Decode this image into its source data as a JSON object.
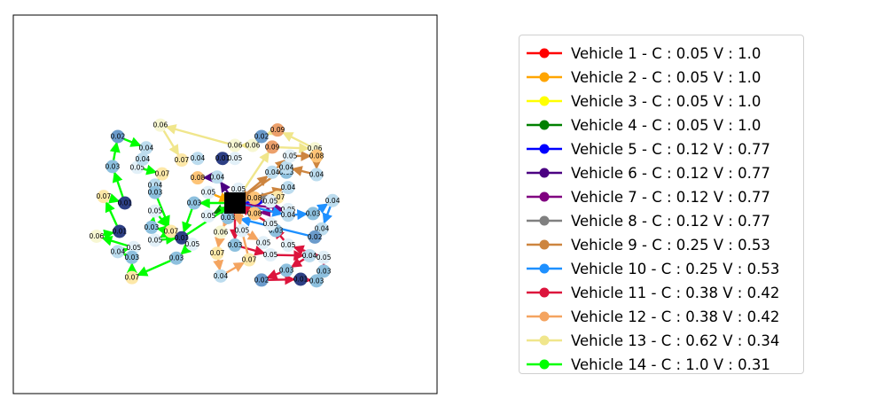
{
  "chart_data": {
    "type": "scatter",
    "title": "",
    "xlabel": "",
    "ylabel": "",
    "grid": false,
    "legend_placement": "right",
    "depot": {
      "x": 0.0,
      "y": 0.0,
      "marker": "square",
      "color": "#000000"
    },
    "nodes": [
      {
        "x": -12.86,
        "y": 13.43,
        "label": "0.06",
        "color": "#f7f7d2"
      },
      {
        "x": 0.0,
        "y": 9.93,
        "label": "0.06",
        "color": "#f7f7d2"
      },
      {
        "x": 3.06,
        "y": 9.93,
        "label": "0.06",
        "color": "#f7f7d2"
      },
      {
        "x": 4.59,
        "y": 11.47,
        "label": "0.02",
        "color": "#6b9bcb"
      },
      {
        "x": 7.35,
        "y": 12.59,
        "label": "0.09",
        "color": "#eca06b"
      },
      {
        "x": 6.43,
        "y": 9.65,
        "label": "0.09",
        "color": "#eca06b"
      },
      {
        "x": 13.78,
        "y": 9.37,
        "label": "0.06",
        "color": "#f7f7d2"
      },
      {
        "x": -6.43,
        "y": 7.69,
        "label": "0.04",
        "color": "#bcdcee"
      },
      {
        "x": -2.14,
        "y": 7.69,
        "label": "0.01",
        "color": "#2d3f84"
      },
      {
        "x": 0.0,
        "y": 7.69,
        "label": "0.05",
        "color": "#e2f0f8"
      },
      {
        "x": -9.18,
        "y": 7.41,
        "label": "0.07",
        "color": "#fde8a8"
      },
      {
        "x": -20.2,
        "y": 11.47,
        "label": "0.02",
        "color": "#6b9bcb"
      },
      {
        "x": -15.31,
        "y": 9.51,
        "label": "0.04",
        "color": "#bcdcee"
      },
      {
        "x": -21.12,
        "y": 6.29,
        "label": "0.03",
        "color": "#8dc0de"
      },
      {
        "x": -16.84,
        "y": 6.15,
        "label": "0.05",
        "color": "#e2f0f8"
      },
      {
        "x": -15.92,
        "y": 7.55,
        "label": "0.04",
        "color": "#bcdcee"
      },
      {
        "x": -12.55,
        "y": 5.03,
        "label": "0.07",
        "color": "#fde8a8"
      },
      {
        "x": -13.78,
        "y": 3.08,
        "label": "0.04",
        "color": "#bcdcee"
      },
      {
        "x": -13.78,
        "y": 1.82,
        "label": "0.03",
        "color": "#8dc0de"
      },
      {
        "x": -22.65,
        "y": 1.12,
        "label": "0.07",
        "color": "#fde8a8"
      },
      {
        "x": -18.98,
        "y": 0.0,
        "label": "0.01",
        "color": "#2d3f84"
      },
      {
        "x": -13.78,
        "y": -1.4,
        "label": "0.05",
        "color": "#e2f0f8"
      },
      {
        "x": -7.04,
        "y": 0.0,
        "label": "0.03",
        "color": "#8dc0de"
      },
      {
        "x": -4.59,
        "y": 1.82,
        "label": "0.05",
        "color": "#e2f0f8"
      },
      {
        "x": -6.43,
        "y": 4.33,
        "label": "0.08",
        "color": "#fdc477"
      },
      {
        "x": -3.06,
        "y": 4.47,
        "label": "0.04",
        "color": "#bcdcee"
      },
      {
        "x": 0.61,
        "y": 2.38,
        "label": "0.05",
        "color": "#e2f0f8"
      },
      {
        "x": -4.59,
        "y": -2.24,
        "label": "0.05",
        "color": "#e2f0f8"
      },
      {
        "x": -14.39,
        "y": -4.19,
        "label": "0.03",
        "color": "#8dc0de"
      },
      {
        "x": -11.02,
        "y": -4.89,
        "label": "0.07",
        "color": "#fde8a8"
      },
      {
        "x": -19.9,
        "y": -4.89,
        "label": "0.01",
        "color": "#2d3f84"
      },
      {
        "x": -13.78,
        "y": -6.43,
        "label": "0.05",
        "color": "#e2f0f8"
      },
      {
        "x": -9.18,
        "y": -6.01,
        "label": "0.01",
        "color": "#2d3f84"
      },
      {
        "x": -7.35,
        "y": -7.13,
        "label": "0.05",
        "color": "#e2f0f8"
      },
      {
        "x": -23.88,
        "y": -5.73,
        "label": "0.06",
        "color": "#f7f7d2"
      },
      {
        "x": -17.45,
        "y": -7.69,
        "label": "0.05",
        "color": "#e2f0f8"
      },
      {
        "x": -20.2,
        "y": -8.39,
        "label": "0.04",
        "color": "#bcdcee"
      },
      {
        "x": -17.76,
        "y": -9.37,
        "label": "0.03",
        "color": "#8dc0de"
      },
      {
        "x": -10.1,
        "y": -9.51,
        "label": "0.03",
        "color": "#8dc0de"
      },
      {
        "x": -17.76,
        "y": -12.87,
        "label": "0.07",
        "color": "#fde8a8"
      },
      {
        "x": -1.22,
        "y": -2.52,
        "label": "0.03",
        "color": "#8dc0de"
      },
      {
        "x": -2.45,
        "y": -5.03,
        "label": "0.06",
        "color": "#f7f7d2"
      },
      {
        "x": 1.22,
        "y": -4.75,
        "label": "0.05",
        "color": "#e2f0f8"
      },
      {
        "x": 3.37,
        "y": -1.82,
        "label": "0.08",
        "color": "#fdc477"
      },
      {
        "x": 3.37,
        "y": 0.84,
        "label": "0.08",
        "color": "#fdc477"
      },
      {
        "x": 4.9,
        "y": -6.85,
        "label": "0.05",
        "color": "#e2f0f8"
      },
      {
        "x": 0.0,
        "y": -7.27,
        "label": "0.03",
        "color": "#8dc0de"
      },
      {
        "x": -3.06,
        "y": -8.67,
        "label": "0.07",
        "color": "#fde8a8"
      },
      {
        "x": 2.45,
        "y": -9.79,
        "label": "0.07",
        "color": "#fde8a8"
      },
      {
        "x": -2.45,
        "y": -12.59,
        "label": "0.04",
        "color": "#bcdcee"
      },
      {
        "x": 6.12,
        "y": -8.95,
        "label": "0.05",
        "color": "#e2f0f8"
      },
      {
        "x": 7.04,
        "y": -4.75,
        "label": "0.03",
        "color": "#8dc0de"
      },
      {
        "x": 6.12,
        "y": -3.63,
        "label": "0.05",
        "color": "#e2f0f8"
      },
      {
        "x": 9.18,
        "y": -7.27,
        "label": "0.05",
        "color": "#e2f0f8"
      },
      {
        "x": 6.43,
        "y": 5.31,
        "label": "0.04",
        "color": "#bcdcee"
      },
      {
        "x": 8.88,
        "y": 5.31,
        "label": "0.03",
        "color": "#8dc0de"
      },
      {
        "x": 9.18,
        "y": 2.66,
        "label": "0.04",
        "color": "#bcdcee"
      },
      {
        "x": 8.88,
        "y": 6.15,
        "label": "0.04",
        "color": "#bcdcee"
      },
      {
        "x": 7.35,
        "y": 0.98,
        "label": "0.07",
        "color": "#fde8a8"
      },
      {
        "x": 9.49,
        "y": 8.11,
        "label": "0.05",
        "color": "#e2f0f8"
      },
      {
        "x": 14.08,
        "y": 8.11,
        "label": "0.08",
        "color": "#fdc477"
      },
      {
        "x": 14.08,
        "y": 4.89,
        "label": "0.04",
        "color": "#bcdcee"
      },
      {
        "x": 6.12,
        "y": 0.28,
        "label": "0.05",
        "color": "#e2f0f8"
      },
      {
        "x": 9.18,
        "y": -1.12,
        "label": "0.05",
        "color": "#e2f0f8"
      },
      {
        "x": 9.18,
        "y": -2.1,
        "label": "0.04",
        "color": "#bcdcee"
      },
      {
        "x": 13.47,
        "y": -1.82,
        "label": "0.03",
        "color": "#8dc0de"
      },
      {
        "x": 16.84,
        "y": 0.42,
        "label": "0.04",
        "color": "#bcdcee"
      },
      {
        "x": 15.0,
        "y": -4.47,
        "label": "0.04",
        "color": "#bcdcee"
      },
      {
        "x": 13.78,
        "y": -5.87,
        "label": "0.02",
        "color": "#6b9bcb"
      },
      {
        "x": 12.86,
        "y": -9.09,
        "label": "0.04",
        "color": "#bcdcee"
      },
      {
        "x": 15.31,
        "y": -9.37,
        "label": "0.05",
        "color": "#e2f0f8"
      },
      {
        "x": 15.31,
        "y": -11.75,
        "label": "0.03",
        "color": "#8dc0de"
      },
      {
        "x": 14.08,
        "y": -13.43,
        "label": "0.03",
        "color": "#8dc0de"
      },
      {
        "x": 11.33,
        "y": -13.15,
        "label": "0.01",
        "color": "#2d3f84"
      },
      {
        "x": 8.88,
        "y": -11.61,
        "label": "0.03",
        "color": "#8dc0de"
      },
      {
        "x": 4.59,
        "y": -13.29,
        "label": "0.02",
        "color": "#6b9bcb"
      }
    ],
    "series": [
      {
        "name": "Vehicle 1 - C : 0.05 V : 1.0",
        "color": "#ff0000",
        "route": [
          [
            0.0,
            0.0
          ],
          [
            0.0,
            0.0
          ]
        ]
      },
      {
        "name": "Vehicle 2 - C : 0.05 V : 1.0",
        "color": "#ffa500",
        "route": [
          [
            -4.59,
            1.82
          ],
          [
            0.0,
            0.0
          ]
        ]
      },
      {
        "name": "Vehicle 3 - C : 0.05 V : 1.0",
        "color": "#ffff00",
        "route": [
          [
            0.0,
            0.0
          ],
          [
            0.61,
            2.38
          ]
        ]
      },
      {
        "name": "Vehicle 4 - C : 0.05 V : 1.0",
        "color": "#008000",
        "route": [
          [
            0.0,
            0.0
          ],
          [
            -4.59,
            -2.24
          ]
        ]
      },
      {
        "name": "Vehicle 5 - C : 0.12 V : 0.77",
        "color": "#0000ff",
        "route": [
          [
            0.0,
            0.0
          ],
          [
            6.12,
            0.28
          ]
        ]
      },
      {
        "name": "Vehicle 6 - C : 0.12 V : 0.77",
        "color": "#4b0082",
        "route": [
          [
            0.0,
            0.0
          ],
          [
            -3.06,
            4.47
          ],
          [
            -6.43,
            4.33
          ]
        ]
      },
      {
        "name": "Vehicle 7 - C : 0.12 V : 0.77",
        "color": "#800080",
        "route": [
          [
            0.0,
            0.0
          ],
          [
            9.18,
            -1.12
          ],
          [
            3.37,
            -1.82
          ],
          [
            0.0,
            0.0
          ]
        ]
      },
      {
        "name": "Vehicle 8 - C : 0.12 V : 0.77",
        "color": "#808080",
        "route": [
          [
            0.0,
            0.0
          ],
          [
            3.37,
            0.84
          ],
          [
            7.35,
            0.98
          ],
          [
            8.88,
            2.66
          ]
        ]
      },
      {
        "name": "Vehicle 9 - C : 0.25 V : 0.53",
        "color": "#cd853f",
        "route": [
          [
            0.0,
            0.0
          ],
          [
            6.43,
            5.31
          ],
          [
            9.49,
            8.11
          ],
          [
            14.08,
            8.11
          ],
          [
            14.08,
            4.89
          ],
          [
            8.88,
            6.15
          ],
          [
            0.0,
            0.0
          ],
          [
            9.18,
            2.66
          ]
        ]
      },
      {
        "name": "Vehicle 10 - C : 0.25 V : 0.53",
        "color": "#1e90ff",
        "route": [
          [
            0.0,
            0.0
          ],
          [
            9.18,
            -2.1
          ],
          [
            13.47,
            -1.82
          ],
          [
            16.84,
            0.42
          ],
          [
            15.0,
            -4.47
          ],
          [
            13.78,
            -5.87
          ],
          [
            0.0,
            -2.52
          ]
        ]
      },
      {
        "name": "Vehicle 11 - C : 0.38 V : 0.42",
        "color": "#dc143c",
        "route": [
          [
            0.0,
            0.0
          ],
          [
            0.0,
            -7.27
          ],
          [
            6.12,
            -8.95
          ],
          [
            12.86,
            -9.09
          ],
          [
            8.88,
            -11.61
          ],
          [
            4.59,
            -13.29
          ],
          [
            11.33,
            -13.15
          ],
          [
            14.08,
            -13.43
          ],
          [
            15.31,
            -11.75
          ],
          [
            15.31,
            -9.37
          ],
          [
            9.18,
            -7.27
          ],
          [
            6.12,
            -3.63
          ],
          [
            0.0,
            0.0
          ]
        ]
      },
      {
        "name": "Vehicle 12 - C : 0.38 V : 0.42",
        "color": "#f4a460",
        "route": [
          [
            0.0,
            0.0
          ],
          [
            -2.45,
            -5.03
          ],
          [
            -3.06,
            -8.67
          ],
          [
            -2.45,
            -12.59
          ],
          [
            2.45,
            -9.79
          ],
          [
            0.0,
            0.0
          ],
          [
            1.22,
            -4.75
          ],
          [
            4.9,
            -6.85
          ]
        ]
      },
      {
        "name": "Vehicle 13 - C : 0.62 V : 0.34",
        "color": "#f0e68c",
        "route": [
          [
            0.0,
            0.0
          ],
          [
            6.43,
            9.65
          ],
          [
            13.78,
            9.37
          ],
          [
            7.35,
            12.59
          ],
          [
            4.59,
            11.47
          ],
          [
            3.06,
            9.93
          ],
          [
            0.0,
            9.93
          ],
          [
            -12.86,
            13.43
          ],
          [
            -9.18,
            7.41
          ]
        ]
      },
      {
        "name": "Vehicle 14 - C : 1.0 V : 0.31",
        "color": "#00ff00",
        "route": [
          [
            0.0,
            0.0
          ],
          [
            -7.04,
            0.0
          ],
          [
            -9.18,
            -6.01
          ],
          [
            -7.35,
            -7.13
          ],
          [
            -10.1,
            -9.51
          ],
          [
            -17.76,
            -12.87
          ],
          [
            -17.76,
            -9.37
          ],
          [
            -20.2,
            -8.39
          ],
          [
            -17.45,
            -7.69
          ],
          [
            -23.88,
            -5.73
          ],
          [
            -19.9,
            -4.89
          ],
          [
            -22.65,
            1.12
          ],
          [
            -18.98,
            0.0
          ],
          [
            -21.12,
            6.29
          ],
          [
            -20.2,
            11.47
          ],
          [
            -15.31,
            9.51
          ],
          [
            -15.92,
            7.55
          ],
          [
            -16.84,
            6.15
          ],
          [
            -12.55,
            5.03
          ],
          [
            -13.78,
            3.08
          ],
          [
            -13.78,
            1.82
          ],
          [
            -11.02,
            -4.89
          ],
          [
            -14.39,
            -4.19
          ],
          [
            -13.78,
            -1.4
          ],
          [
            -11.02,
            -4.89
          ],
          [
            -13.78,
            -6.43
          ],
          [
            -9.18,
            -6.01
          ],
          [
            0.0,
            0.0
          ]
        ]
      }
    ]
  }
}
